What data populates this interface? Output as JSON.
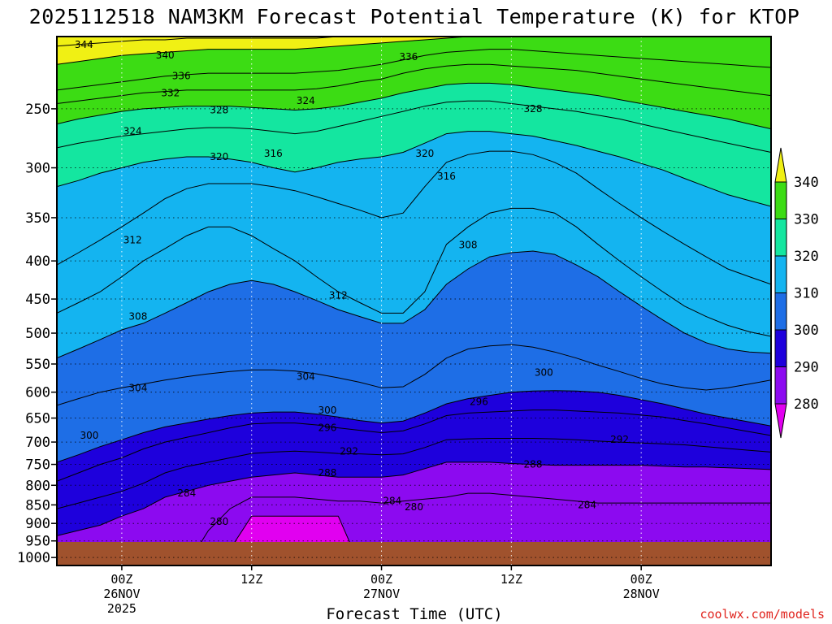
{
  "chart_data": {
    "type": "heatmap",
    "title": "2025112518 NAM3KM Forecast Potential Temperature (K) for KTOP",
    "xlabel": "Forecast Time (UTC)",
    "ylabel": "",
    "credit": "coolwx.com/models",
    "x_range_hours": [
      -6,
      60
    ],
    "y_range_hpa": [
      1025,
      200
    ],
    "y_scale": "log-pressure",
    "y_ticks": [
      {
        "p": 250,
        "label": "250"
      },
      {
        "p": 300,
        "label": "300"
      },
      {
        "p": 350,
        "label": "350"
      },
      {
        "p": 400,
        "label": "400"
      },
      {
        "p": 450,
        "label": "450"
      },
      {
        "p": 500,
        "label": "500"
      },
      {
        "p": 550,
        "label": "550"
      },
      {
        "p": 600,
        "label": "600"
      },
      {
        "p": 650,
        "label": "650"
      },
      {
        "p": 700,
        "label": "700"
      },
      {
        "p": 750,
        "label": "750"
      },
      {
        "p": 800,
        "label": "800"
      },
      {
        "p": 850,
        "label": "850"
      },
      {
        "p": 900,
        "label": "900"
      },
      {
        "p": 950,
        "label": "950"
      },
      {
        "p": 1000,
        "label": "1000"
      }
    ],
    "x_ticks": [
      {
        "h": 0,
        "lines": [
          "00Z",
          "26NOV",
          "2025"
        ]
      },
      {
        "h": 12,
        "lines": [
          "12Z"
        ]
      },
      {
        "h": 24,
        "lines": [
          "00Z",
          "27NOV"
        ]
      },
      {
        "h": 36,
        "lines": [
          "12Z"
        ]
      },
      {
        "h": 48,
        "lines": [
          "00Z",
          "28NOV"
        ]
      }
    ],
    "surface_pressure_hpa": 975,
    "colorbar": {
      "levels": [
        280,
        290,
        300,
        310,
        320,
        330,
        340
      ],
      "labels": [
        "280",
        "290",
        "300",
        "310",
        "320",
        "330",
        "340"
      ],
      "colors": [
        "#e100f0",
        "#8c0af0",
        "#1e00dc",
        "#1e6ee6",
        "#14b4f0",
        "#14e6a0",
        "#3cdc14",
        "#f0f014"
      ]
    },
    "contour_interval_k": 4,
    "contour_levels": [
      280,
      284,
      288,
      292,
      296,
      300,
      304,
      308,
      312,
      316,
      320,
      324,
      328,
      332,
      336,
      340,
      344
    ],
    "level_profiles": [
      {
        "theta": 280,
        "pressure_hpa": [
          1025,
          1025,
          1025,
          1025,
          1025,
          1025,
          1025,
          1025,
          975,
          880,
          880,
          880,
          880,
          880,
          1025,
          1025,
          1025,
          1025,
          1025,
          1025,
          1025,
          1025,
          1025,
          1025,
          1025,
          1025,
          1025,
          1025,
          1025,
          1025,
          1025,
          1025,
          1025,
          1025
        ]
      },
      {
        "theta": 284,
        "pressure_hpa": [
          1025,
          1025,
          1025,
          1025,
          1025,
          1025,
          1025,
          920,
          860,
          830,
          830,
          830,
          835,
          840,
          840,
          845,
          840,
          835,
          830,
          820,
          820,
          825,
          830,
          835,
          840,
          845,
          845,
          845,
          845,
          845,
          845,
          845,
          845,
          845
        ]
      },
      {
        "theta": 288,
        "pressure_hpa": [
          935,
          920,
          905,
          880,
          860,
          830,
          815,
          800,
          790,
          780,
          775,
          770,
          775,
          780,
          780,
          780,
          775,
          760,
          745,
          745,
          745,
          748,
          750,
          752,
          752,
          752,
          752,
          752,
          754,
          756,
          756,
          758,
          760,
          762
        ]
      },
      {
        "theta": 292,
        "pressure_hpa": [
          860,
          845,
          830,
          815,
          795,
          770,
          755,
          745,
          735,
          725,
          722,
          720,
          722,
          725,
          726,
          728,
          726,
          712,
          695,
          693,
          692,
          692,
          692,
          693,
          695,
          698,
          700,
          702,
          704,
          706,
          710,
          714,
          718,
          722
        ]
      },
      {
        "theta": 296,
        "pressure_hpa": [
          790,
          770,
          750,
          735,
          715,
          700,
          690,
          680,
          670,
          662,
          660,
          660,
          664,
          670,
          675,
          680,
          676,
          662,
          645,
          640,
          638,
          636,
          634,
          634,
          636,
          638,
          640,
          644,
          648,
          655,
          662,
          670,
          678,
          686
        ]
      },
      {
        "theta": 300,
        "pressure_hpa": [
          745,
          728,
          710,
          695,
          680,
          668,
          660,
          652,
          645,
          640,
          638,
          638,
          642,
          648,
          655,
          660,
          656,
          640,
          622,
          612,
          606,
          600,
          598,
          597,
          598,
          600,
          606,
          614,
          622,
          632,
          642,
          650,
          658,
          666
        ]
      },
      {
        "theta": 304,
        "pressure_hpa": [
          625,
          612,
          600,
          592,
          585,
          578,
          572,
          567,
          563,
          560,
          560,
          562,
          567,
          574,
          582,
          592,
          590,
          568,
          540,
          525,
          520,
          518,
          522,
          530,
          540,
          552,
          563,
          575,
          585,
          592,
          596,
          592,
          585,
          578
        ]
      },
      {
        "theta": 308,
        "pressure_hpa": [
          540,
          525,
          510,
          495,
          485,
          470,
          455,
          440,
          430,
          425,
          430,
          440,
          452,
          465,
          475,
          485,
          485,
          465,
          430,
          410,
          395,
          390,
          388,
          392,
          405,
          420,
          440,
          460,
          480,
          500,
          515,
          525,
          530,
          532
        ]
      },
      {
        "theta": 312,
        "pressure_hpa": [
          470,
          455,
          440,
          420,
          400,
          385,
          370,
          360,
          360,
          370,
          385,
          400,
          420,
          440,
          455,
          470,
          470,
          440,
          380,
          360,
          345,
          340,
          340,
          345,
          360,
          380,
          400,
          420,
          440,
          460,
          475,
          488,
          498,
          505
        ]
      },
      {
        "theta": 316,
        "pressure_hpa": [
          405,
          390,
          375,
          360,
          345,
          330,
          320,
          315,
          315,
          315,
          318,
          322,
          328,
          335,
          342,
          350,
          345,
          318,
          295,
          288,
          285,
          285,
          288,
          295,
          305,
          320,
          335,
          350,
          365,
          380,
          395,
          410,
          420,
          430
        ]
      },
      {
        "theta": 320,
        "pressure_hpa": [
          318,
          312,
          305,
          300,
          295,
          292,
          290,
          290,
          292,
          295,
          300,
          304,
          300,
          295,
          292,
          290,
          286,
          278,
          270,
          268,
          268,
          270,
          272,
          276,
          280,
          285,
          290,
          296,
          302,
          310,
          318,
          326,
          332,
          338
        ]
      },
      {
        "theta": 324,
        "pressure_hpa": [
          282,
          278,
          275,
          272,
          270,
          268,
          266,
          265,
          265,
          266,
          268,
          270,
          268,
          264,
          260,
          256,
          252,
          248,
          245,
          244,
          244,
          246,
          248,
          250,
          252,
          255,
          258,
          262,
          266,
          270,
          274,
          278,
          282,
          286
        ]
      },
      {
        "theta": 328,
        "pressure_hpa": [
          262,
          258,
          255,
          252,
          250,
          249,
          248,
          248,
          248,
          249,
          250,
          251,
          250,
          248,
          245,
          242,
          238,
          235,
          232,
          231,
          231,
          232,
          234,
          236,
          238,
          240,
          243,
          246,
          249,
          252,
          255,
          258,
          262,
          266
        ]
      },
      {
        "theta": 332,
        "pressure_hpa": [
          246,
          244,
          242,
          240,
          238,
          237,
          236,
          236,
          236,
          236,
          236,
          236,
          235,
          233,
          230,
          228,
          224,
          221,
          219,
          218,
          218,
          219,
          220,
          221,
          222,
          224,
          226,
          228,
          230,
          232,
          234,
          236,
          238,
          240
        ]
      },
      {
        "theta": 336,
        "pressure_hpa": [
          236,
          234,
          232,
          230,
          228,
          226,
          225,
          224,
          224,
          224,
          224,
          224,
          223,
          222,
          220,
          218,
          215,
          212,
          210,
          209,
          208,
          208,
          209,
          210,
          211,
          212,
          213,
          214,
          215,
          216,
          217,
          218,
          219,
          220
        ]
      },
      {
        "theta": 340,
        "pressure_hpa": [
          218,
          216,
          214,
          212,
          211,
          210,
          209,
          208,
          208,
          208,
          208,
          208,
          207,
          206,
          205,
          204,
          203,
          202,
          201,
          200,
          200,
          200,
          200,
          200,
          200,
          200,
          200,
          200,
          200,
          200,
          200,
          200,
          200,
          200
        ]
      },
      {
        "theta": 344,
        "pressure_hpa": [
          206,
          205,
          204,
          203,
          202,
          202,
          201,
          201,
          201,
          201,
          201,
          201,
          201,
          200,
          200,
          200,
          200,
          200,
          200,
          200,
          200,
          200,
          200,
          200,
          200,
          200,
          200,
          200,
          200,
          200,
          200,
          200,
          200,
          200
        ]
      }
    ],
    "level_profile_hours": [
      -6,
      -4,
      -2,
      0,
      2,
      4,
      6,
      8,
      10,
      12,
      14,
      16,
      18,
      20,
      22,
      24,
      26,
      28,
      30,
      32,
      34,
      36,
      38,
      40,
      42,
      44,
      46,
      48,
      50,
      52,
      54,
      56,
      58,
      60
    ],
    "contour_labels": [
      {
        "text": "344",
        "h": -3.5,
        "p": 205
      },
      {
        "text": "340",
        "h": 4,
        "p": 212
      },
      {
        "text": "336",
        "h": 5.5,
        "p": 226
      },
      {
        "text": "332",
        "h": 4.5,
        "p": 238
      },
      {
        "text": "328",
        "h": 9,
        "p": 251
      },
      {
        "text": "324",
        "h": 17,
        "p": 244
      },
      {
        "text": "336",
        "h": 26.5,
        "p": 213
      },
      {
        "text": "328",
        "h": 38,
        "p": 250
      },
      {
        "text": "324",
        "h": 1,
        "p": 268
      },
      {
        "text": "320",
        "h": 9,
        "p": 290
      },
      {
        "text": "316",
        "h": 14,
        "p": 287
      },
      {
        "text": "320",
        "h": 28,
        "p": 287
      },
      {
        "text": "316",
        "h": 30,
        "p": 308
      },
      {
        "text": "312",
        "h": 1,
        "p": 375
      },
      {
        "text": "312",
        "h": 20,
        "p": 445
      },
      {
        "text": "308",
        "h": 32,
        "p": 381
      },
      {
        "text": "308",
        "h": 1.5,
        "p": 475
      },
      {
        "text": "304",
        "h": 1.5,
        "p": 592
      },
      {
        "text": "304",
        "h": 17,
        "p": 572
      },
      {
        "text": "300",
        "h": -3,
        "p": 686
      },
      {
        "text": "300",
        "h": 19,
        "p": 635
      },
      {
        "text": "296",
        "h": 19,
        "p": 670
      },
      {
        "text": "296",
        "h": 33,
        "p": 618
      },
      {
        "text": "292",
        "h": 21,
        "p": 720
      },
      {
        "text": "292",
        "h": 46,
        "p": 695
      },
      {
        "text": "300",
        "h": 39,
        "p": 565
      },
      {
        "text": "288",
        "h": 19,
        "p": 770
      },
      {
        "text": "288",
        "h": 38,
        "p": 750
      },
      {
        "text": "284",
        "h": 6,
        "p": 820
      },
      {
        "text": "284",
        "h": 25,
        "p": 840
      },
      {
        "text": "284",
        "h": 43,
        "p": 850
      },
      {
        "text": "280",
        "h": 9,
        "p": 895
      },
      {
        "text": "280",
        "h": 27,
        "p": 855
      }
    ]
  }
}
